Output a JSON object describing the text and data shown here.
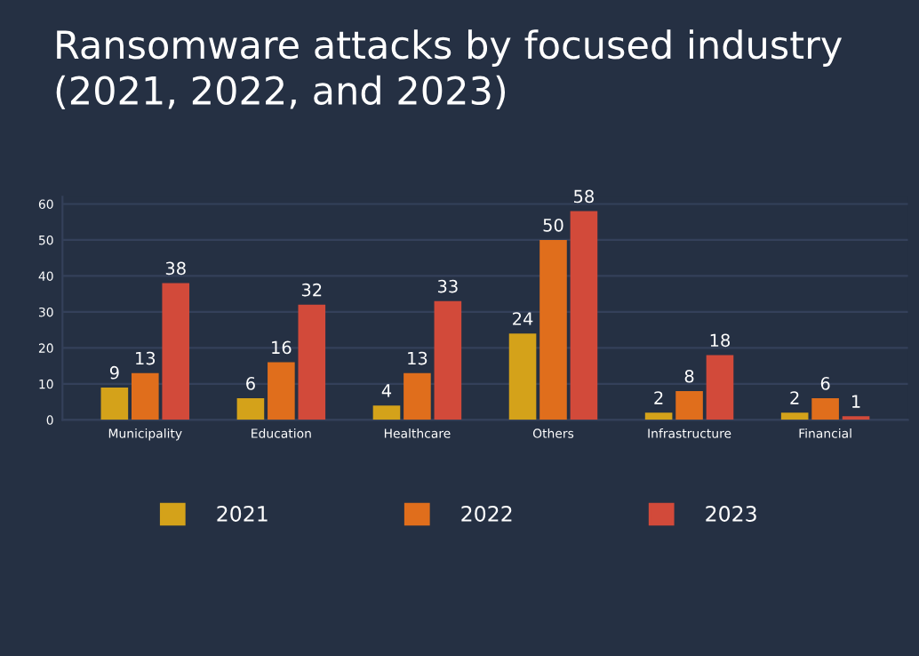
{
  "chart_data": {
    "type": "bar",
    "title": "Ransomware attacks by focused industry\n(2021, 2022, and 2023)",
    "categories": [
      "Municipality",
      "Education",
      "Healthcare",
      "Others",
      "Infrastructure",
      "Financial"
    ],
    "series": [
      {
        "name": "2021",
        "color": "#d4a21a",
        "values": [
          9,
          6,
          4,
          24,
          2,
          2
        ]
      },
      {
        "name": "2022",
        "color": "#e06e1c",
        "values": [
          13,
          16,
          13,
          50,
          8,
          6
        ]
      },
      {
        "name": "2023",
        "color": "#d24a3a",
        "values": [
          38,
          32,
          33,
          58,
          18,
          1
        ]
      }
    ],
    "ylim": [
      0,
      62
    ],
    "yticks": [
      0,
      10,
      20,
      30,
      40,
      50,
      60
    ],
    "grid": "y",
    "data_labels": true,
    "legend": "bottom"
  }
}
